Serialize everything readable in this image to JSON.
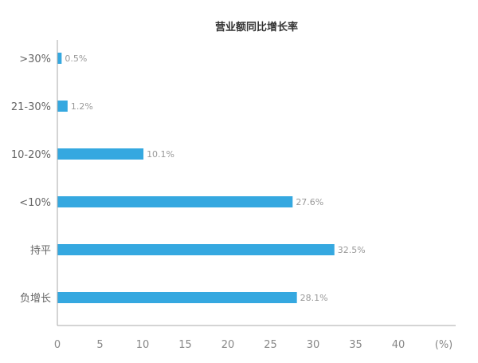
{
  "chart_data": {
    "type": "bar",
    "orientation": "horizontal",
    "title": "营业额同比增长率",
    "categories": [
      ">30%",
      "21-30%",
      "10-20%",
      "<10%",
      "持平",
      "负增长"
    ],
    "values": [
      0.5,
      1.2,
      10.1,
      27.6,
      32.5,
      28.1
    ],
    "data_labels": [
      "0.5%",
      "1.2%",
      "10.1%",
      "27.6%",
      "32.5%",
      "28.1%"
    ],
    "x_ticks": [
      "0",
      "5",
      "10",
      "15",
      "20",
      "25",
      "30",
      "35",
      "40"
    ],
    "x_unit": "(%)",
    "xlim": [
      0,
      45
    ],
    "grid": false,
    "colors": {
      "bar": "#35a8e0",
      "axis": "#aaaaaa"
    }
  }
}
